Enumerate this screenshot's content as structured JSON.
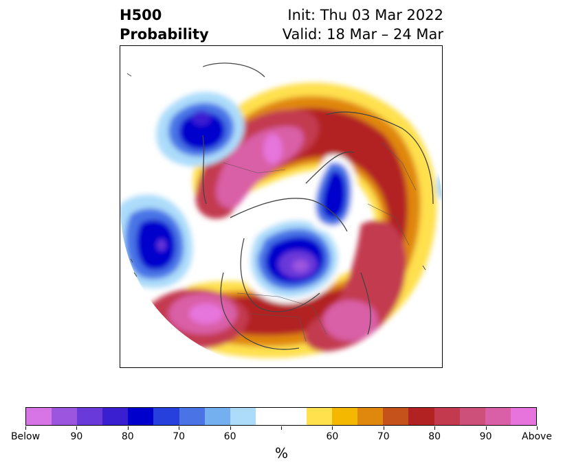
{
  "header": {
    "title_line1": "H500",
    "title_line2": "Probability",
    "init_text": "Init: Thu 03 Mar 2022",
    "valid_text": "Valid: 18 Mar – 24 Mar"
  },
  "colorbar": {
    "colors": [
      "#d774e6",
      "#9b55de",
      "#6a39d9",
      "#3a1fd1",
      "#0000cc",
      "#2640dd",
      "#4a74e6",
      "#74b0f0",
      "#acdcfa",
      "#ffffff",
      "#ffffff",
      "#ffe04d",
      "#f4b800",
      "#e0870e",
      "#c5521a",
      "#b22222",
      "#c33a4f",
      "#cc5079",
      "#d95fa6",
      "#e674dc"
    ],
    "tick_labels": [
      "Below",
      "90",
      "80",
      "70",
      "60",
      "",
      "60",
      "70",
      "80",
      "90",
      "Above"
    ],
    "unit_label": "%"
  },
  "map": {
    "projection": "polar-stereographic",
    "variable": "H500 probability",
    "palette": {
      "blue_deep": "#0000cc",
      "blue_purple": "#6a39d9",
      "blue_mid": "#4a74e6",
      "blue_light": "#acdcfa",
      "yellow": "#ffe04d",
      "orange": "#e0870e",
      "red": "#b22222",
      "rose": "#c33a4f",
      "pink": "#d95fa6",
      "magenta": "#e674dc"
    }
  }
}
